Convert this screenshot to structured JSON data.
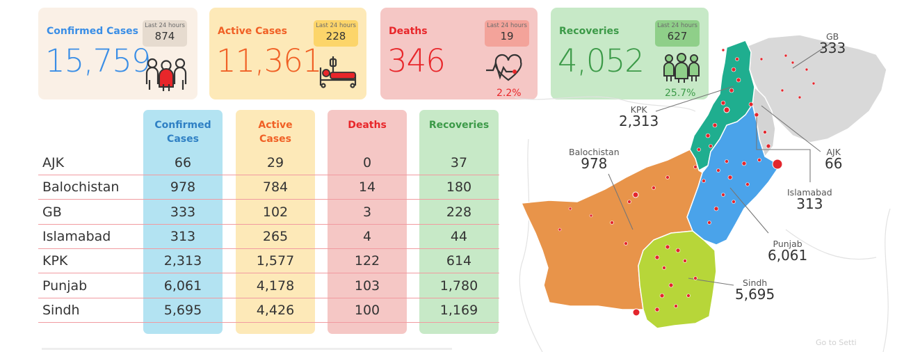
{
  "cards": {
    "confirmed": {
      "title": "Confirmed Cases",
      "value": "15,759",
      "badge_label": "Last 24 hours",
      "badge_value": "874",
      "icon": "people-group-icon"
    },
    "active": {
      "title": "Active Cases",
      "value": "11,361",
      "badge_label": "Last 24 hours",
      "badge_value": "228",
      "icon": "hospital-bed-icon"
    },
    "deaths": {
      "title": "Deaths",
      "value": "346",
      "badge_label": "Last 24 hours",
      "badge_value": "19",
      "percent": "2.2%",
      "icon": "heartbeat-icon"
    },
    "recoveries": {
      "title": "Recoveries",
      "value": "4,052",
      "badge_label": "Last 24 hours",
      "badge_value": "627",
      "percent": "25.7%",
      "icon": "recovered-people-icon"
    }
  },
  "table": {
    "headers": {
      "confirmed": [
        "Confirmed",
        "Cases"
      ],
      "active": [
        "Active",
        "Cases"
      ],
      "deaths": "Deaths",
      "recoveries": "Recoveries"
    },
    "rows": [
      {
        "region": "AJK",
        "confirmed": "66",
        "active": "29",
        "deaths": "0",
        "recoveries": "37"
      },
      {
        "region": "Balochistan",
        "confirmed": "978",
        "active": "784",
        "deaths": "14",
        "recoveries": "180"
      },
      {
        "region": "GB",
        "confirmed": "333",
        "active": "102",
        "deaths": "3",
        "recoveries": "228"
      },
      {
        "region": "Islamabad",
        "confirmed": "313",
        "active": "265",
        "deaths": "4",
        "recoveries": "44"
      },
      {
        "region": "KPK",
        "confirmed": "2,313",
        "active": "1,577",
        "deaths": "122",
        "recoveries": "614"
      },
      {
        "region": "Punjab",
        "confirmed": "6,061",
        "active": "4,178",
        "deaths": "103",
        "recoveries": "1,780"
      },
      {
        "region": "Sindh",
        "confirmed": "5,695",
        "active": "4,426",
        "deaths": "100",
        "recoveries": "1,169"
      }
    ]
  },
  "map": {
    "labels": {
      "gb": {
        "name": "GB",
        "value": "333"
      },
      "kpk": {
        "name": "KPK",
        "value": "2,313"
      },
      "ajk": {
        "name": "AJK",
        "value": "66"
      },
      "balochistan": {
        "name": "Balochistan",
        "value": "978"
      },
      "islamabad": {
        "name": "Islamabad",
        "value": "313"
      },
      "punjab": {
        "name": "Punjab",
        "value": "6,061"
      },
      "sindh": {
        "name": "Sindh",
        "value": "5,695"
      }
    },
    "colors": {
      "balochistan": "#e8944a",
      "sindh": "#b7d639",
      "punjab": "#4aa3ea",
      "kpk": "#1fae8f",
      "gb": "#d9d9d9",
      "dots": "#e3262d"
    }
  },
  "watermark": "Go to Setti"
}
